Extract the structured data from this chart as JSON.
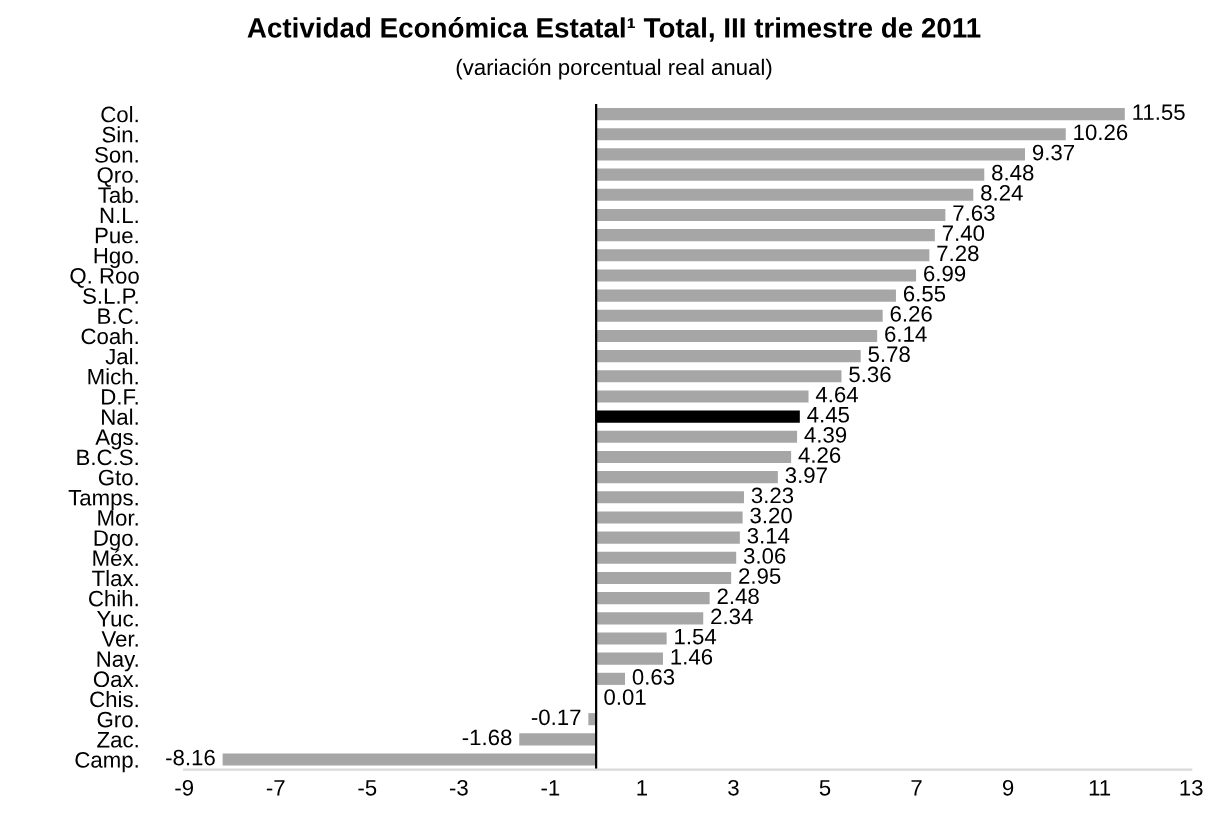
{
  "chart_data": {
    "type": "bar",
    "orientation": "horizontal",
    "title": "Actividad Económica Estatal¹ Total, III trimestre de 2011",
    "subtitle": "(variación porcentual real anual)",
    "categories": [
      "Col.",
      "Sin.",
      "Son.",
      "Qro.",
      "Tab.",
      "N.L.",
      "Pue.",
      "Hgo.",
      "Q. Roo",
      "S.L.P.",
      "B.C.",
      "Coah.",
      "Jal.",
      "Mich.",
      "D.F.",
      "Nal.",
      "Ags.",
      "B.C.S.",
      "Gto.",
      "Tamps.",
      "Mor.",
      "Dgo.",
      "Méx.",
      "Tlax.",
      "Chih.",
      "Yuc.",
      "Ver.",
      "Nay.",
      "Oax.",
      "Chis.",
      "Gro.",
      "Zac.",
      "Camp."
    ],
    "values": [
      11.55,
      10.26,
      9.37,
      8.48,
      8.24,
      7.63,
      7.4,
      7.28,
      6.99,
      6.55,
      6.26,
      6.14,
      5.78,
      5.36,
      4.64,
      4.45,
      4.39,
      4.26,
      3.97,
      3.23,
      3.2,
      3.14,
      3.06,
      2.95,
      2.48,
      2.34,
      1.54,
      1.46,
      0.63,
      0.01,
      -0.17,
      -1.68,
      -8.16
    ],
    "value_labels": [
      "11.55",
      "10.26",
      "9.37",
      "8.48",
      "8.24",
      "7.63",
      "7.40",
      "7.28",
      "6.99",
      "6.55",
      "6.26",
      "6.14",
      "5.78",
      "5.36",
      "4.64",
      "4.45",
      "4.39",
      "4.26",
      "3.97",
      "3.23",
      "3.20",
      "3.14",
      "3.06",
      "2.95",
      "2.48",
      "2.34",
      "1.54",
      "1.46",
      "0.63",
      "0.01",
      "-0.17",
      "-1.68",
      "-8.16"
    ],
    "colors": [
      "#a6a6a6",
      "#a6a6a6",
      "#a6a6a6",
      "#a6a6a6",
      "#a6a6a6",
      "#a6a6a6",
      "#a6a6a6",
      "#a6a6a6",
      "#a6a6a6",
      "#a6a6a6",
      "#a6a6a6",
      "#a6a6a6",
      "#a6a6a6",
      "#a6a6a6",
      "#a6a6a6",
      "#000000",
      "#a6a6a6",
      "#a6a6a6",
      "#a6a6a6",
      "#a6a6a6",
      "#a6a6a6",
      "#a6a6a6",
      "#a6a6a6",
      "#a6a6a6",
      "#a6a6a6",
      "#a6a6a6",
      "#a6a6a6",
      "#a6a6a6",
      "#a6a6a6",
      "#a6a6a6",
      "#a6a6a6",
      "#a6a6a6",
      "#a6a6a6"
    ],
    "xlim": [
      -9,
      13
    ],
    "xticks": [
      -9,
      -7,
      -5,
      -3,
      -1,
      1,
      3,
      5,
      7,
      9,
      11,
      13
    ],
    "grid": false,
    "legend": false
  }
}
